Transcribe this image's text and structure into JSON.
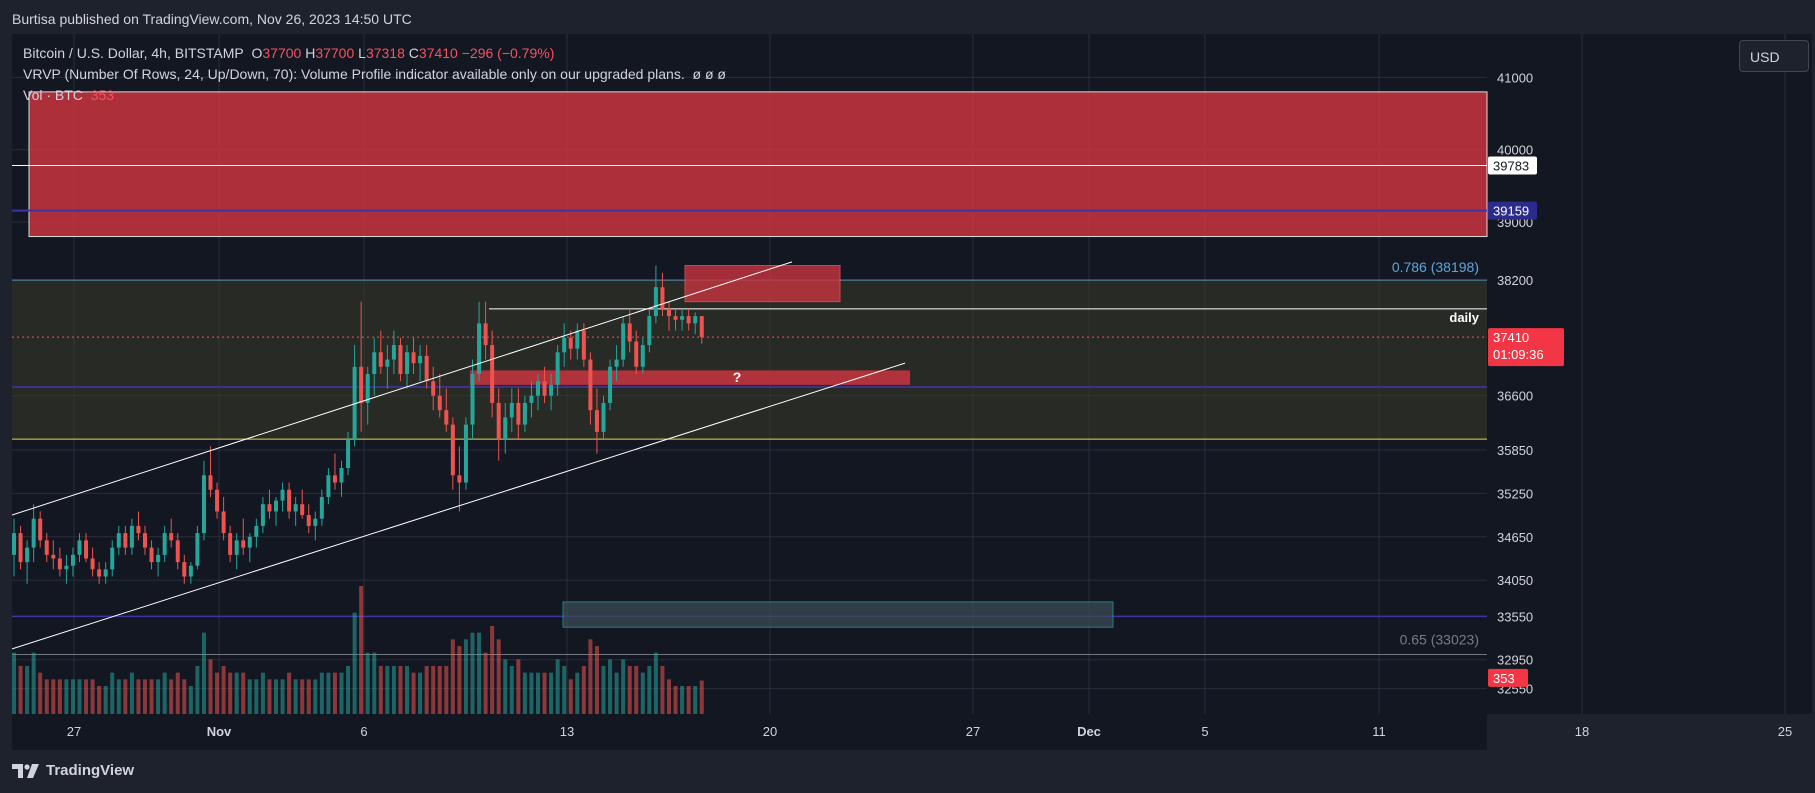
{
  "header": {
    "published_text": "Burtisa published on TradingView.com, Nov 26, 2023 14:50 UTC"
  },
  "legend": {
    "symbol": "Bitcoin / U.S. Dollar, 4h, BITSTAMP",
    "o_label": "O",
    "o_value": "37700",
    "h_label": "H",
    "h_value": "37700",
    "l_label": "L",
    "l_value": "37318",
    "c_label": "C",
    "c_value": "37410",
    "change": "−296 (−0.79%)",
    "vrvp": "VRVP (Number Of Rows, 24, Up/Down, 70): Volume Profile indicator available only on our upgraded plans.",
    "vrvp_icons": "ø ø ø",
    "vol_label": "Vol · BTC",
    "vol_value": "353"
  },
  "currency_button": "USD",
  "footer": {
    "brand": "TradingView"
  },
  "colors": {
    "bg": "#131722",
    "grid": "#2a2e39",
    "up": "#26a69a",
    "down": "#ef5350",
    "red_zone": "#c8343f",
    "yellow_zone": "#3a3a2a",
    "blue_line": "#3d34a8",
    "fib_blue": "#5ea6dc",
    "yellow_line": "#e6d85a"
  },
  "chart_data": {
    "type": "candlestick",
    "title": "Bitcoin / U.S. Dollar, 4h, BITSTAMP",
    "ylim": [
      32200,
      41600
    ],
    "x_ticks": [
      {
        "label": "27",
        "day": 27.0
      },
      {
        "label": "Nov",
        "day": 32.0
      },
      {
        "label": "6",
        "day": 37.0
      },
      {
        "label": "13",
        "day": 44.0
      },
      {
        "label": "20",
        "day": 51.0
      },
      {
        "label": "27",
        "day": 58.0
      },
      {
        "label": "Dec",
        "day": 62.0
      },
      {
        "label": "5",
        "day": 66.0
      },
      {
        "label": "11",
        "day": 72.0
      },
      {
        "label": "18",
        "day": 79.0
      },
      {
        "label": "25",
        "day": 86.0
      }
    ],
    "y_ticks": [
      41000,
      40000,
      39000,
      38200,
      37410,
      36600,
      35850,
      35250,
      34650,
      34050,
      33550,
      32950,
      32550
    ],
    "y_tick_labels": [
      "41000",
      "40000",
      "39000",
      "38200",
      "",
      "36600",
      "35850",
      "35250",
      "34650",
      "34050",
      "33550",
      "32950",
      "32550"
    ],
    "candles_4h_approx": [
      [
        34400,
        34900,
        34100,
        34700
      ],
      [
        34700,
        34800,
        34200,
        34300
      ],
      [
        34300,
        34600,
        34000,
        34500
      ],
      [
        34500,
        35100,
        34300,
        34900
      ],
      [
        34900,
        35000,
        34500,
        34600
      ],
      [
        34600,
        34700,
        34300,
        34400
      ],
      [
        34400,
        34600,
        34200,
        34350
      ],
      [
        34350,
        34500,
        34100,
        34200
      ],
      [
        34200,
        34400,
        34000,
        34250
      ],
      [
        34250,
        34500,
        34100,
        34400
      ],
      [
        34400,
        34700,
        34300,
        34600
      ],
      [
        34600,
        34700,
        34300,
        34350
      ],
      [
        34350,
        34500,
        34100,
        34200
      ],
      [
        34200,
        34300,
        34000,
        34100
      ],
      [
        34100,
        34300,
        34000,
        34200
      ],
      [
        34200,
        34600,
        34100,
        34500
      ],
      [
        34500,
        34800,
        34400,
        34700
      ],
      [
        34700,
        34800,
        34400,
        34500
      ],
      [
        34500,
        34900,
        34400,
        34800
      ],
      [
        34800,
        35000,
        34600,
        34700
      ],
      [
        34700,
        34800,
        34400,
        34500
      ],
      [
        34500,
        34600,
        34200,
        34300
      ],
      [
        34300,
        34500,
        34100,
        34400
      ],
      [
        34400,
        34800,
        34300,
        34700
      ],
      [
        34700,
        34900,
        34500,
        34600
      ],
      [
        34600,
        34700,
        34200,
        34300
      ],
      [
        34300,
        34400,
        34000,
        34100
      ],
      [
        34100,
        34300,
        34000,
        34250
      ],
      [
        34250,
        34800,
        34200,
        34700
      ],
      [
        34700,
        35700,
        34600,
        35500
      ],
      [
        35500,
        35900,
        35200,
        35300
      ],
      [
        35300,
        35400,
        34900,
        35000
      ],
      [
        35000,
        35200,
        34600,
        34700
      ],
      [
        34700,
        34800,
        34300,
        34400
      ],
      [
        34400,
        34700,
        34200,
        34600
      ],
      [
        34600,
        34900,
        34400,
        34500
      ],
      [
        34500,
        34700,
        34300,
        34650
      ],
      [
        34650,
        34900,
        34500,
        34800
      ],
      [
        34800,
        35200,
        34700,
        35100
      ],
      [
        35100,
        35300,
        34900,
        35000
      ],
      [
        35000,
        35200,
        34800,
        35150
      ],
      [
        35150,
        35400,
        35000,
        35300
      ],
      [
        35300,
        35400,
        34900,
        35000
      ],
      [
        35000,
        35200,
        34800,
        35100
      ],
      [
        35100,
        35300,
        34900,
        34950
      ],
      [
        34950,
        35100,
        34700,
        34800
      ],
      [
        34800,
        35000,
        34600,
        34900
      ],
      [
        34900,
        35300,
        34800,
        35200
      ],
      [
        35200,
        35600,
        35100,
        35500
      ],
      [
        35500,
        35800,
        35300,
        35400
      ],
      [
        35400,
        35700,
        35200,
        35600
      ],
      [
        35600,
        36100,
        35500,
        36000
      ],
      [
        36000,
        37300,
        35900,
        37000
      ],
      [
        37000,
        37900,
        36100,
        36500
      ],
      [
        36500,
        37000,
        36200,
        36900
      ],
      [
        36900,
        37400,
        36600,
        37200
      ],
      [
        37200,
        37500,
        36900,
        37000
      ],
      [
        37000,
        37300,
        36700,
        37100
      ],
      [
        37100,
        37500,
        36900,
        37300
      ],
      [
        37300,
        37400,
        36800,
        36900
      ],
      [
        36900,
        37300,
        36700,
        37200
      ],
      [
        37200,
        37400,
        36900,
        37050
      ],
      [
        37050,
        37300,
        36800,
        37150
      ],
      [
        37150,
        37300,
        36700,
        36800
      ],
      [
        36800,
        37000,
        36400,
        36600
      ],
      [
        36600,
        36900,
        36300,
        36400
      ],
      [
        36400,
        36700,
        36100,
        36200
      ],
      [
        36200,
        36300,
        35300,
        35500
      ],
      [
        35500,
        35900,
        35000,
        35400
      ],
      [
        35400,
        36300,
        35300,
        36200
      ],
      [
        36200,
        37100,
        36000,
        36900
      ],
      [
        36900,
        37900,
        36800,
        37600
      ],
      [
        37600,
        37900,
        37100,
        37300
      ],
      [
        37300,
        37500,
        36300,
        36500
      ],
      [
        36500,
        36700,
        35700,
        36000
      ],
      [
        36000,
        36500,
        35800,
        36300
      ],
      [
        36300,
        36700,
        36100,
        36500
      ],
      [
        36500,
        36700,
        36000,
        36200
      ],
      [
        36200,
        36600,
        36100,
        36500
      ],
      [
        36500,
        36800,
        36300,
        36600
      ],
      [
        36600,
        36900,
        36400,
        36800
      ],
      [
        36800,
        37000,
        36500,
        36600
      ],
      [
        36600,
        36900,
        36400,
        36750
      ],
      [
        36750,
        37300,
        36600,
        37200
      ],
      [
        37200,
        37600,
        37000,
        37400
      ],
      [
        37400,
        37500,
        37100,
        37250
      ],
      [
        37250,
        37600,
        37100,
        37500
      ],
      [
        37500,
        37600,
        37000,
        37100
      ],
      [
        37100,
        37200,
        36200,
        36400
      ],
      [
        36400,
        36700,
        35800,
        36100
      ],
      [
        36100,
        36600,
        36000,
        36500
      ],
      [
        36500,
        37100,
        36400,
        37000
      ],
      [
        37000,
        37300,
        36800,
        37100
      ],
      [
        37100,
        37700,
        37000,
        37600
      ],
      [
        37600,
        37800,
        37200,
        37350
      ],
      [
        37350,
        37500,
        36900,
        37000
      ],
      [
        37000,
        37400,
        36900,
        37300
      ],
      [
        37300,
        37800,
        37200,
        37700
      ],
      [
        37700,
        38400,
        37600,
        38100
      ],
      [
        38100,
        38300,
        37700,
        37800
      ],
      [
        37800,
        37900,
        37500,
        37700
      ],
      [
        37700,
        37800,
        37500,
        37650
      ],
      [
        37650,
        37800,
        37500,
        37700
      ],
      [
        37700,
        37800,
        37500,
        37600
      ],
      [
        37600,
        37750,
        37450,
        37700
      ],
      [
        37700,
        37700,
        37318,
        37410
      ]
    ],
    "volume_note": "Vol · BTC histogram, last bar 353",
    "overlays": {
      "resistance_zone": [
        38800,
        40800
      ],
      "upper_resistance_zone": [
        37900,
        38400
      ],
      "white_level": 39783,
      "blue_level": 39159,
      "fib_786": {
        "label": "0.786 (38198)",
        "price": 38198
      },
      "daily_level": {
        "label": "daily",
        "price": 37800
      },
      "current_price": {
        "label": "37410",
        "countdown": "01:09:36",
        "price": 37410
      },
      "support_zone": {
        "label": "?",
        "range": [
          36750,
          36950
        ]
      },
      "blue_support": 36720,
      "yellow_level": 36000,
      "demand_zone": [
        33400,
        33750
      ],
      "blue_low": 33550,
      "fib_65": {
        "label": "0.65 (33023)",
        "price": 33023
      },
      "volume_badge": "353"
    },
    "price_badges": [
      "39783",
      "39159"
    ]
  }
}
